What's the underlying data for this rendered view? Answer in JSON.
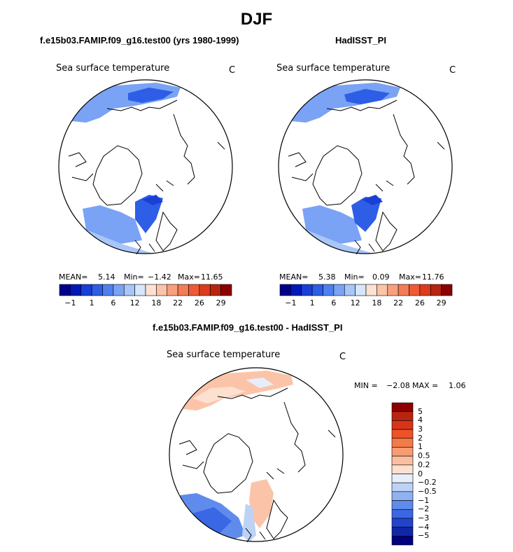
{
  "title": "DJF",
  "panels": [
    {
      "title": "f.e15b03.FAMIP.f09_g16.test00 (yrs 1980-1999)",
      "subtitle": "Sea surface temperature",
      "units": "C",
      "stats": {
        "mean_label": "MEAN=",
        "mean": "5.14",
        "min_label": "Min=",
        "min": "−1.42",
        "max_label": "Max=",
        "max": "11.65"
      }
    },
    {
      "title": "HadISST_PI",
      "subtitle": "Sea surface temperature",
      "units": "C",
      "stats": {
        "mean_label": "MEAN=",
        "mean": "5.38",
        "min_label": "Min=",
        "min": "0.09",
        "max_label": "Max=",
        "max": "11.76"
      }
    },
    {
      "title": "f.e15b03.FAMIP.f09_g16.test00 - HadISST_PI",
      "subtitle": "Sea surface temperature",
      "units": "C",
      "stats": {
        "min_label": "MIN =",
        "min": "−2.08",
        "max_label": "MAX =",
        "max": "1.06"
      }
    }
  ],
  "colorbars": {
    "sst": {
      "colors": [
        "#00008b",
        "#0018b8",
        "#1a3fd6",
        "#2e5ee6",
        "#4f7ff0",
        "#7aa3f5",
        "#a8c6f8",
        "#d6e6fb",
        "#fde2d2",
        "#fbc4a8",
        "#f8a07e",
        "#f47c56",
        "#ef5a34",
        "#db3c1c",
        "#b8250f",
        "#8b0000"
      ],
      "tick_labels": [
        "−1",
        "1",
        "6",
        "12",
        "18",
        "22",
        "26",
        "29"
      ]
    },
    "diff": {
      "colors": [
        "#8b0000",
        "#b8250f",
        "#d8341a",
        "#ef5226",
        "#f47a48",
        "#f89c72",
        "#fbbfa0",
        "#fde0cf",
        "#e7eef9",
        "#bcd3f6",
        "#8fb2f2",
        "#5f8cec",
        "#3a67e4",
        "#2244cc",
        "#1027a8",
        "#000080"
      ],
      "tick_labels": [
        "5",
        "4",
        "3",
        "2",
        "1",
        "0.5",
        "0.2",
        "0",
        "−0.2",
        "−0.5",
        "−1",
        "−2",
        "−3",
        "−4",
        "−5"
      ]
    }
  },
  "chart_data": [
    {
      "type": "heatmap",
      "title": "f.e15b03.FAMIP.f09_g16.test00 (yrs 1980-1999)",
      "variable": "Sea surface temperature",
      "units": "C",
      "projection": "polar stereographic (Arctic)",
      "mean": 5.14,
      "min": -1.42,
      "max": 11.65,
      "colorbar_levels": [
        -1,
        1,
        6,
        12,
        18,
        22,
        26,
        29
      ]
    },
    {
      "type": "heatmap",
      "title": "HadISST_PI",
      "variable": "Sea surface temperature",
      "units": "C",
      "projection": "polar stereographic (Arctic)",
      "mean": 5.38,
      "min": 0.09,
      "max": 11.76,
      "colorbar_levels": [
        -1,
        1,
        6,
        12,
        18,
        22,
        26,
        29
      ]
    },
    {
      "type": "heatmap",
      "title": "f.e15b03.FAMIP.f09_g16.test00 - HadISST_PI",
      "variable": "Sea surface temperature",
      "units": "C",
      "projection": "polar stereographic (Arctic)",
      "min": -2.08,
      "max": 1.06,
      "colorbar_levels": [
        5,
        4,
        3,
        2,
        1,
        0.5,
        0.2,
        0,
        -0.2,
        -0.5,
        -1,
        -2,
        -3,
        -4,
        -5
      ]
    }
  ]
}
